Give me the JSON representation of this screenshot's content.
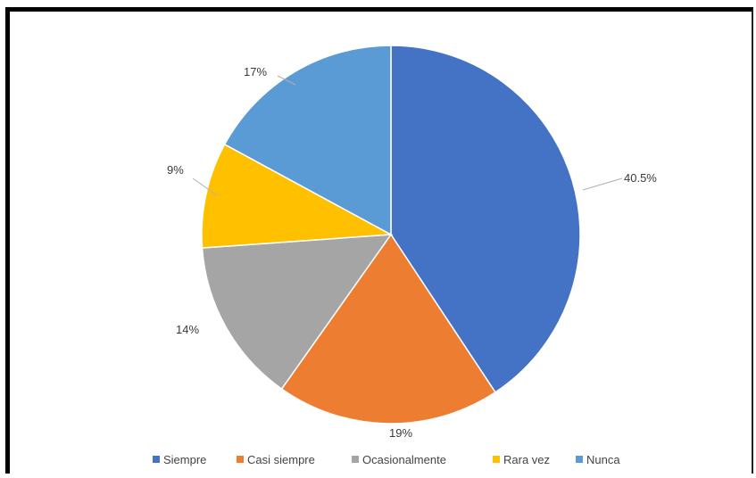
{
  "chart_data": {
    "type": "pie",
    "categories": [
      "Siempre",
      "Casi siempre",
      "Ocasionalmente",
      "Rara vez",
      "Nunca"
    ],
    "values": [
      40.5,
      19,
      14,
      9,
      17
    ],
    "labels": [
      "40.5%",
      "19%",
      "14%",
      "9%",
      "17%"
    ],
    "colors": [
      "#4472C4",
      "#ED7D31",
      "#A5A5A5",
      "#FFC000",
      "#5B9BD5"
    ],
    "legend_position": "bottom"
  }
}
